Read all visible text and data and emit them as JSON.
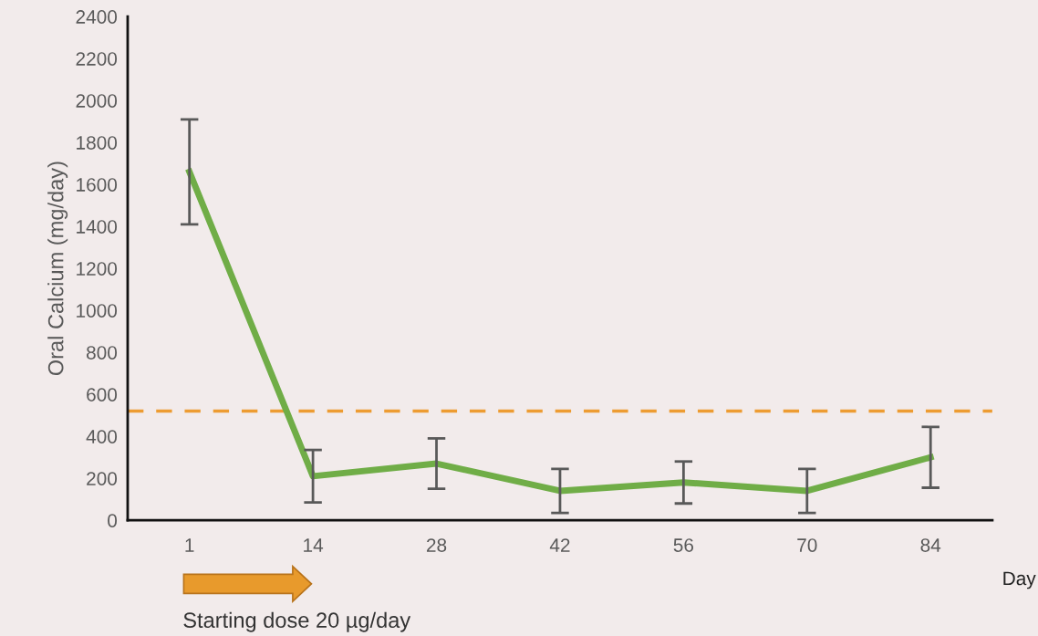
{
  "chart_data": {
    "type": "line",
    "ylabel": "Oral Calcium (mg/day)",
    "xlabel": "Day",
    "categories": [
      "1",
      "14",
      "28",
      "42",
      "56",
      "70",
      "84"
    ],
    "series": [
      {
        "color": "#70ad47",
        "values": [
          1660,
          210,
          270,
          140,
          180,
          140,
          300
        ],
        "errors": [
          250,
          125,
          120,
          105,
          100,
          105,
          145
        ]
      }
    ],
    "ylim": [
      0,
      2400
    ],
    "yticks": [
      0,
      200,
      400,
      600,
      800,
      1000,
      1200,
      1400,
      1600,
      1800,
      2000,
      2200,
      2400
    ],
    "ref_lines": [
      {
        "axis": "y",
        "value": 520,
        "color": "#ed9c32",
        "line_style": "dashed"
      }
    ],
    "annotations": [
      "Starting dose 20 µg/day"
    ],
    "grid": false,
    "marker": "none",
    "line_style": "solid"
  }
}
